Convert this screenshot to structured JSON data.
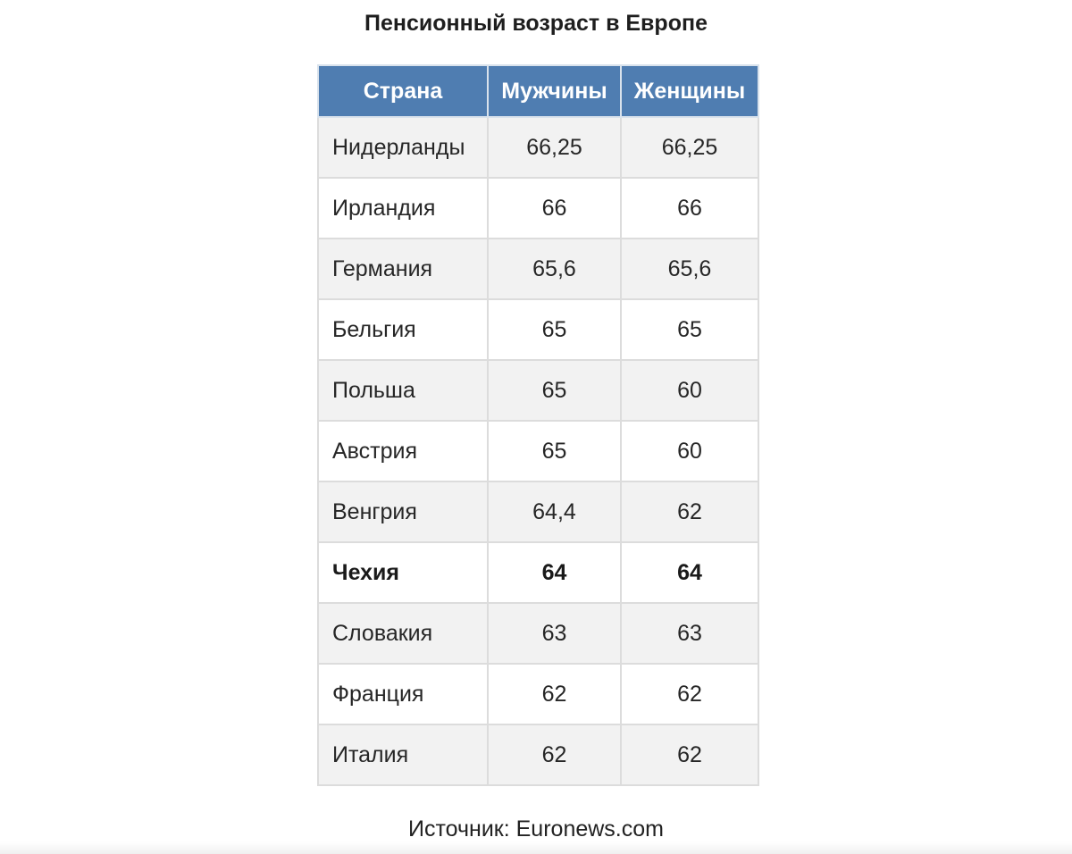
{
  "title": "Пенсионный возраст в Европе",
  "table": {
    "headers": [
      "Страна",
      "Мужчины",
      "Женщины"
    ],
    "rows": [
      {
        "country": "Нидерланды",
        "men": "66,25",
        "women": "66,25",
        "highlight": false
      },
      {
        "country": "Ирландия",
        "men": "66",
        "women": "66",
        "highlight": false
      },
      {
        "country": "Германия",
        "men": "65,6",
        "women": "65,6",
        "highlight": false
      },
      {
        "country": "Бельгия",
        "men": "65",
        "women": "65",
        "highlight": false
      },
      {
        "country": "Польша",
        "men": "65",
        "women": "60",
        "highlight": false
      },
      {
        "country": "Австрия",
        "men": "65",
        "women": "60",
        "highlight": false
      },
      {
        "country": "Венгрия",
        "men": "64,4",
        "women": "62",
        "highlight": false
      },
      {
        "country": "Чехия",
        "men": "64",
        "women": "64",
        "highlight": true
      },
      {
        "country": "Словакия",
        "men": "63",
        "women": "63",
        "highlight": false
      },
      {
        "country": "Франция",
        "men": "62",
        "women": "62",
        "highlight": false
      },
      {
        "country": "Италия",
        "men": "62",
        "women": "62",
        "highlight": false
      }
    ]
  },
  "source": "Источник: Euronews.com",
  "colors": {
    "header_bg": "#4f7db1",
    "odd_row_bg": "#f2f2f2",
    "even_row_bg": "#ffffff",
    "border": "#dcdcdc"
  }
}
